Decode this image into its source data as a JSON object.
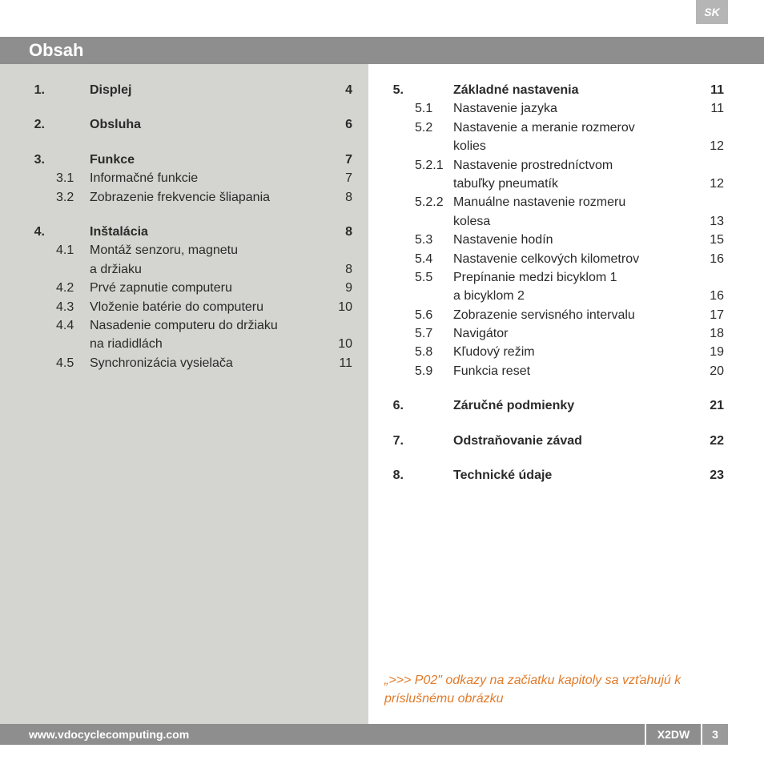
{
  "lang_tab": "SK",
  "header": "Obsah",
  "footer": {
    "url": "www.vdocyclecomputing.com",
    "product": "X2DW",
    "page": "3"
  },
  "hint": "„>>> P02\" odkazy na začiatku kapitoly sa vzťahujú k príslušnému obrázku",
  "left": [
    {
      "type": "main",
      "num": "1.",
      "title": "Displej",
      "page": "4"
    },
    {
      "type": "gap"
    },
    {
      "type": "main",
      "num": "2.",
      "title": "Obsluha",
      "page": "6"
    },
    {
      "type": "gap"
    },
    {
      "type": "main",
      "num": "3.",
      "title": "Funkce",
      "page": "7"
    },
    {
      "type": "sub",
      "sub": "3.1",
      "title": "Informačné funkcie",
      "page": "7"
    },
    {
      "type": "sub",
      "sub": "3.2",
      "title": "Zobrazenie frekvencie šliapania",
      "page": "8"
    },
    {
      "type": "gap"
    },
    {
      "type": "main",
      "num": "4.",
      "title": "Inštalácia",
      "page": "8"
    },
    {
      "type": "sub",
      "sub": "4.1",
      "title": "Montáž senzoru, magnetu",
      "page": ""
    },
    {
      "type": "cont",
      "title": "a držiaku",
      "page": "8"
    },
    {
      "type": "sub",
      "sub": "4.2",
      "title": "Prvé zapnutie computeru",
      "page": "9"
    },
    {
      "type": "sub",
      "sub": "4.3",
      "title": "Vloženie batérie do computeru",
      "page": "10"
    },
    {
      "type": "sub",
      "sub": "4.4",
      "title": "Nasadenie computeru do držiaku",
      "page": ""
    },
    {
      "type": "cont",
      "title": "na riadidlách",
      "page": "10"
    },
    {
      "type": "sub",
      "sub": "4.5",
      "title": "Synchronizácia vysielača",
      "page": "11"
    }
  ],
  "right": [
    {
      "type": "main",
      "num": "5.",
      "title": "Základné nastavenia",
      "page": "11"
    },
    {
      "type": "sub",
      "sub": "5.1",
      "title": "Nastavenie jazyka",
      "page": "11"
    },
    {
      "type": "sub",
      "sub": "5.2",
      "title": "Nastavenie a meranie rozmerov",
      "page": ""
    },
    {
      "type": "cont",
      "title": "kolies",
      "page": "12"
    },
    {
      "type": "sub",
      "sub": "5.2.1",
      "title": "Nastavenie prostredníctvom",
      "page": ""
    },
    {
      "type": "cont",
      "title": "tabuľky pneumatík",
      "page": "12"
    },
    {
      "type": "sub",
      "sub": "5.2.2",
      "title": "Manuálne nastavenie rozmeru",
      "page": ""
    },
    {
      "type": "cont",
      "title": "kolesa",
      "page": "13"
    },
    {
      "type": "sub",
      "sub": "5.3",
      "title": "Nastavenie hodín",
      "page": "15"
    },
    {
      "type": "sub",
      "sub": "5.4",
      "title": "Nastavenie celkových kilometrov",
      "page": "16"
    },
    {
      "type": "sub",
      "sub": "5.5",
      "title": "Prepínanie medzi bicyklom 1",
      "page": ""
    },
    {
      "type": "cont",
      "title": "a bicyklom 2",
      "page": "16"
    },
    {
      "type": "sub",
      "sub": "5.6",
      "title": "Zobrazenie servisného intervalu",
      "page": "17"
    },
    {
      "type": "sub",
      "sub": "5.7",
      "title": "Navigátor",
      "page": "18"
    },
    {
      "type": "sub",
      "sub": "5.8",
      "title": "Kľudový režim",
      "page": "19"
    },
    {
      "type": "sub",
      "sub": "5.9",
      "title": "Funkcia reset",
      "page": "20"
    },
    {
      "type": "gap"
    },
    {
      "type": "main",
      "num": "6.",
      "title": "Záručné podmienky",
      "page": "21"
    },
    {
      "type": "gap"
    },
    {
      "type": "main",
      "num": "7.",
      "title": "Odstraňovanie závad",
      "page": "22"
    },
    {
      "type": "gap"
    },
    {
      "type": "main",
      "num": "8.",
      "title": "Technické údaje",
      "page": "23"
    }
  ]
}
